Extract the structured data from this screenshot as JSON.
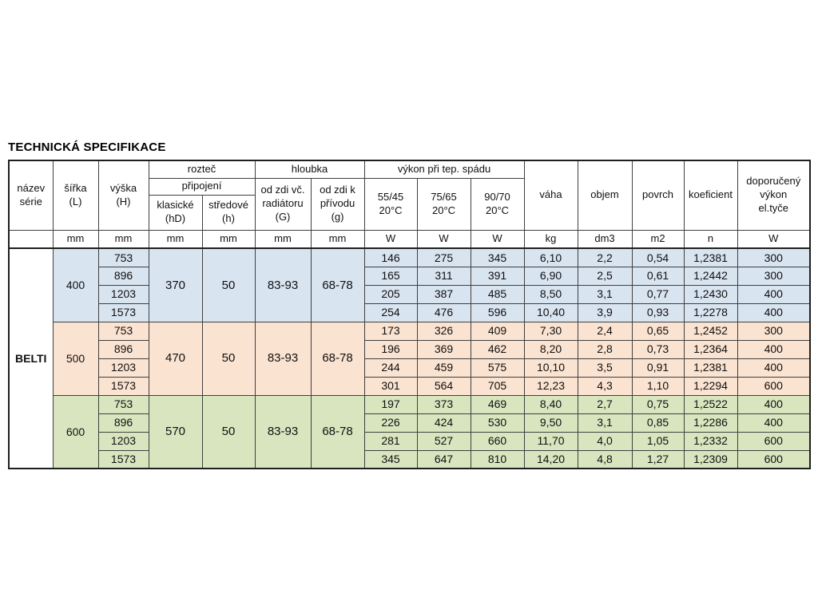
{
  "title": "TECHNICKÁ SPECIFIKACE",
  "table": {
    "serie": "BELTI",
    "headers": {
      "nazev_serie": "název\nsérie",
      "sirka": "šířka\n(L)",
      "vyska": "výška\n(H)",
      "roztec": "rozteč",
      "pripojeni": "připojení",
      "klasicke": "klasické\n(hD)",
      "stredove": "středové\n(h)",
      "hloubka": "hloubka",
      "od_zdi_G": "od zdi vč.\nradiátoru\n(G)",
      "od_zdi_g": "od zdi k\npřívodu\n(g)",
      "vykon": "výkon při tep. spádu",
      "t5545": "55/45\n20°C",
      "t7565": "75/65\n20°C",
      "t9070": "90/70\n20°C",
      "vaha": "váha",
      "objem": "objem",
      "povrch": "povrch",
      "koeficient": "koeficient",
      "doporuceny": "doporučený\nvýkon\nel.tyče"
    },
    "units": [
      "",
      "mm",
      "mm",
      "mm",
      "mm",
      "mm",
      "mm",
      "W",
      "W",
      "W",
      "kg",
      "dm3",
      "m2",
      "n",
      "W"
    ],
    "groups": [
      {
        "sirka": "400",
        "color": "#d9e4f1",
        "roztec_klasicke": "370",
        "roztec_stredove": "50",
        "hloubka_G": "83-93",
        "hloubka_g": "68-78",
        "rows": [
          {
            "vyska": "753",
            "w5545": "146",
            "w7565": "275",
            "w9070": "345",
            "vaha": "6,10",
            "objem": "2,2",
            "povrch": "0,54",
            "koeficient": "1,2381",
            "doporuceny": "300"
          },
          {
            "vyska": "896",
            "w5545": "165",
            "w7565": "311",
            "w9070": "391",
            "vaha": "6,90",
            "objem": "2,5",
            "povrch": "0,61",
            "koeficient": "1,2442",
            "doporuceny": "300"
          },
          {
            "vyska": "1203",
            "w5545": "205",
            "w7565": "387",
            "w9070": "485",
            "vaha": "8,50",
            "objem": "3,1",
            "povrch": "0,77",
            "koeficient": "1,2430",
            "doporuceny": "400"
          },
          {
            "vyska": "1573",
            "w5545": "254",
            "w7565": "476",
            "w9070": "596",
            "vaha": "10,40",
            "objem": "3,9",
            "povrch": "0,93",
            "koeficient": "1,2278",
            "doporuceny": "400"
          }
        ]
      },
      {
        "sirka": "500",
        "color": "#fbe3d1",
        "roztec_klasicke": "470",
        "roztec_stredove": "50",
        "hloubka_G": "83-93",
        "hloubka_g": "68-78",
        "rows": [
          {
            "vyska": "753",
            "w5545": "173",
            "w7565": "326",
            "w9070": "409",
            "vaha": "7,30",
            "objem": "2,4",
            "povrch": "0,65",
            "koeficient": "1,2452",
            "doporuceny": "300"
          },
          {
            "vyska": "896",
            "w5545": "196",
            "w7565": "369",
            "w9070": "462",
            "vaha": "8,20",
            "objem": "2,8",
            "povrch": "0,73",
            "koeficient": "1,2364",
            "doporuceny": "400"
          },
          {
            "vyska": "1203",
            "w5545": "244",
            "w7565": "459",
            "w9070": "575",
            "vaha": "10,10",
            "objem": "3,5",
            "povrch": "0,91",
            "koeficient": "1,2381",
            "doporuceny": "400"
          },
          {
            "vyska": "1573",
            "w5545": "301",
            "w7565": "564",
            "w9070": "705",
            "vaha": "12,23",
            "objem": "4,3",
            "povrch": "1,10",
            "koeficient": "1,2294",
            "doporuceny": "600"
          }
        ]
      },
      {
        "sirka": "600",
        "color": "#d9e5bf",
        "roztec_klasicke": "570",
        "roztec_stredove": "50",
        "hloubka_G": "83-93",
        "hloubka_g": "68-78",
        "rows": [
          {
            "vyska": "753",
            "w5545": "197",
            "w7565": "373",
            "w9070": "469",
            "vaha": "8,40",
            "objem": "2,7",
            "povrch": "0,75",
            "koeficient": "1,2522",
            "doporuceny": "400"
          },
          {
            "vyska": "896",
            "w5545": "226",
            "w7565": "424",
            "w9070": "530",
            "vaha": "9,50",
            "objem": "3,1",
            "povrch": "0,85",
            "koeficient": "1,2286",
            "doporuceny": "400"
          },
          {
            "vyska": "1203",
            "w5545": "281",
            "w7565": "527",
            "w9070": "660",
            "vaha": "11,70",
            "objem": "4,0",
            "povrch": "1,05",
            "koeficient": "1,2332",
            "doporuceny": "600"
          },
          {
            "vyska": "1573",
            "w5545": "345",
            "w7565": "647",
            "w9070": "810",
            "vaha": "14,20",
            "objem": "4,8",
            "povrch": "1,27",
            "koeficient": "1,2309",
            "doporuceny": "600"
          }
        ]
      }
    ]
  }
}
